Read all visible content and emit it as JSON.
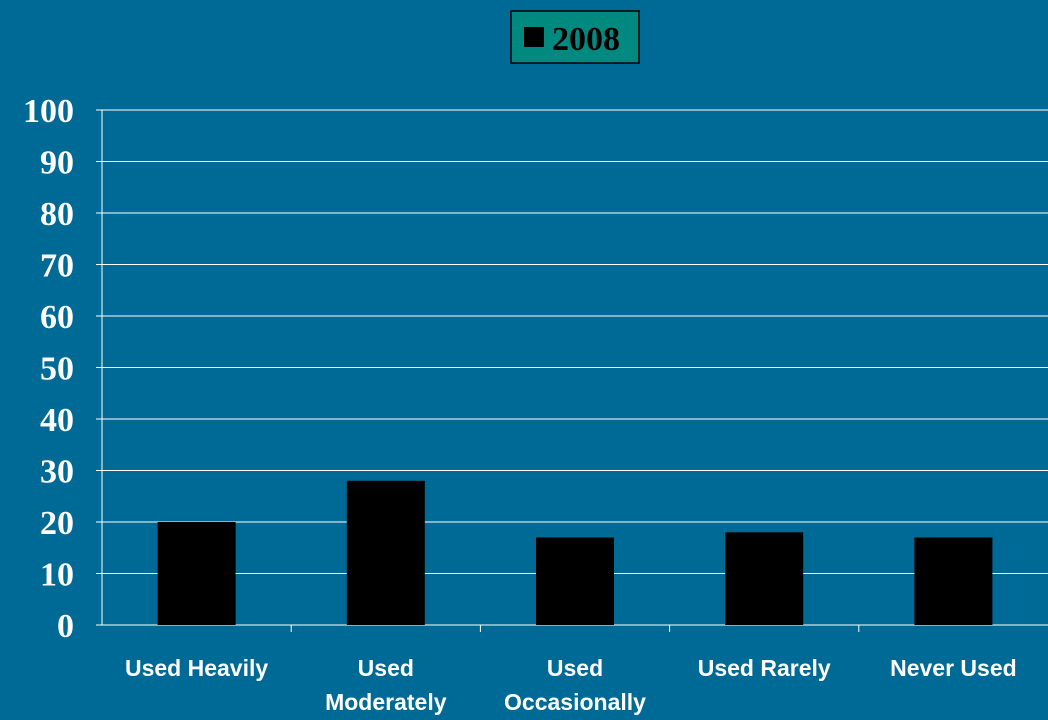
{
  "chart_data": {
    "type": "bar",
    "categories": [
      "Used Heavily",
      "Used Moderately",
      "Used Occasionally",
      "Used Rarely",
      "Never Used"
    ],
    "category_lines": [
      [
        "Used Heavily"
      ],
      [
        "Used",
        "Moderately"
      ],
      [
        "Used",
        "Occasionally"
      ],
      [
        "Used Rarely"
      ],
      [
        "Never Used"
      ]
    ],
    "series": [
      {
        "name": "2008",
        "values": [
          20,
          28,
          17,
          18,
          17
        ]
      }
    ],
    "ylim": [
      0,
      100
    ],
    "yticks": [
      0,
      10,
      20,
      30,
      40,
      50,
      60,
      70,
      80,
      90,
      100
    ],
    "grid": true,
    "legend": "top-center",
    "colors": {
      "background": "#006a96",
      "bar": "#000000",
      "legend_box": "#00897f",
      "gridline": "#ffffff",
      "text": "#ffffff"
    }
  }
}
